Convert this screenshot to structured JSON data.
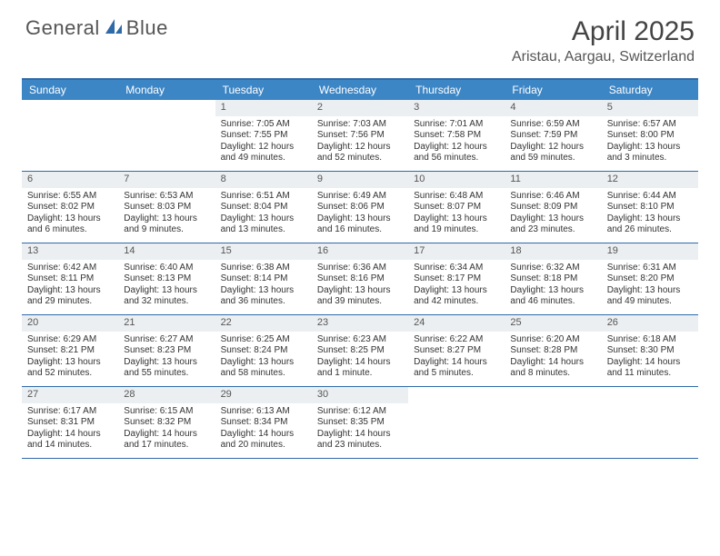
{
  "brand": {
    "name_a": "General",
    "name_b": "Blue"
  },
  "title": "April 2025",
  "location": "Aristau, Aargau, Switzerland",
  "colors": {
    "header_bg": "#3d86c6",
    "border": "#2f6aa8",
    "daynum_bg": "#eceff1",
    "text": "#333333"
  },
  "day_headers": [
    "Sunday",
    "Monday",
    "Tuesday",
    "Wednesday",
    "Thursday",
    "Friday",
    "Saturday"
  ],
  "weeks": [
    [
      {
        "n": "",
        "sr": "",
        "ss": "",
        "dl": ""
      },
      {
        "n": "",
        "sr": "",
        "ss": "",
        "dl": ""
      },
      {
        "n": "1",
        "sr": "Sunrise: 7:05 AM",
        "ss": "Sunset: 7:55 PM",
        "dl": "Daylight: 12 hours and 49 minutes."
      },
      {
        "n": "2",
        "sr": "Sunrise: 7:03 AM",
        "ss": "Sunset: 7:56 PM",
        "dl": "Daylight: 12 hours and 52 minutes."
      },
      {
        "n": "3",
        "sr": "Sunrise: 7:01 AM",
        "ss": "Sunset: 7:58 PM",
        "dl": "Daylight: 12 hours and 56 minutes."
      },
      {
        "n": "4",
        "sr": "Sunrise: 6:59 AM",
        "ss": "Sunset: 7:59 PM",
        "dl": "Daylight: 12 hours and 59 minutes."
      },
      {
        "n": "5",
        "sr": "Sunrise: 6:57 AM",
        "ss": "Sunset: 8:00 PM",
        "dl": "Daylight: 13 hours and 3 minutes."
      }
    ],
    [
      {
        "n": "6",
        "sr": "Sunrise: 6:55 AM",
        "ss": "Sunset: 8:02 PM",
        "dl": "Daylight: 13 hours and 6 minutes."
      },
      {
        "n": "7",
        "sr": "Sunrise: 6:53 AM",
        "ss": "Sunset: 8:03 PM",
        "dl": "Daylight: 13 hours and 9 minutes."
      },
      {
        "n": "8",
        "sr": "Sunrise: 6:51 AM",
        "ss": "Sunset: 8:04 PM",
        "dl": "Daylight: 13 hours and 13 minutes."
      },
      {
        "n": "9",
        "sr": "Sunrise: 6:49 AM",
        "ss": "Sunset: 8:06 PM",
        "dl": "Daylight: 13 hours and 16 minutes."
      },
      {
        "n": "10",
        "sr": "Sunrise: 6:48 AM",
        "ss": "Sunset: 8:07 PM",
        "dl": "Daylight: 13 hours and 19 minutes."
      },
      {
        "n": "11",
        "sr": "Sunrise: 6:46 AM",
        "ss": "Sunset: 8:09 PM",
        "dl": "Daylight: 13 hours and 23 minutes."
      },
      {
        "n": "12",
        "sr": "Sunrise: 6:44 AM",
        "ss": "Sunset: 8:10 PM",
        "dl": "Daylight: 13 hours and 26 minutes."
      }
    ],
    [
      {
        "n": "13",
        "sr": "Sunrise: 6:42 AM",
        "ss": "Sunset: 8:11 PM",
        "dl": "Daylight: 13 hours and 29 minutes."
      },
      {
        "n": "14",
        "sr": "Sunrise: 6:40 AM",
        "ss": "Sunset: 8:13 PM",
        "dl": "Daylight: 13 hours and 32 minutes."
      },
      {
        "n": "15",
        "sr": "Sunrise: 6:38 AM",
        "ss": "Sunset: 8:14 PM",
        "dl": "Daylight: 13 hours and 36 minutes."
      },
      {
        "n": "16",
        "sr": "Sunrise: 6:36 AM",
        "ss": "Sunset: 8:16 PM",
        "dl": "Daylight: 13 hours and 39 minutes."
      },
      {
        "n": "17",
        "sr": "Sunrise: 6:34 AM",
        "ss": "Sunset: 8:17 PM",
        "dl": "Daylight: 13 hours and 42 minutes."
      },
      {
        "n": "18",
        "sr": "Sunrise: 6:32 AM",
        "ss": "Sunset: 8:18 PM",
        "dl": "Daylight: 13 hours and 46 minutes."
      },
      {
        "n": "19",
        "sr": "Sunrise: 6:31 AM",
        "ss": "Sunset: 8:20 PM",
        "dl": "Daylight: 13 hours and 49 minutes."
      }
    ],
    [
      {
        "n": "20",
        "sr": "Sunrise: 6:29 AM",
        "ss": "Sunset: 8:21 PM",
        "dl": "Daylight: 13 hours and 52 minutes."
      },
      {
        "n": "21",
        "sr": "Sunrise: 6:27 AM",
        "ss": "Sunset: 8:23 PM",
        "dl": "Daylight: 13 hours and 55 minutes."
      },
      {
        "n": "22",
        "sr": "Sunrise: 6:25 AM",
        "ss": "Sunset: 8:24 PM",
        "dl": "Daylight: 13 hours and 58 minutes."
      },
      {
        "n": "23",
        "sr": "Sunrise: 6:23 AM",
        "ss": "Sunset: 8:25 PM",
        "dl": "Daylight: 14 hours and 1 minute."
      },
      {
        "n": "24",
        "sr": "Sunrise: 6:22 AM",
        "ss": "Sunset: 8:27 PM",
        "dl": "Daylight: 14 hours and 5 minutes."
      },
      {
        "n": "25",
        "sr": "Sunrise: 6:20 AM",
        "ss": "Sunset: 8:28 PM",
        "dl": "Daylight: 14 hours and 8 minutes."
      },
      {
        "n": "26",
        "sr": "Sunrise: 6:18 AM",
        "ss": "Sunset: 8:30 PM",
        "dl": "Daylight: 14 hours and 11 minutes."
      }
    ],
    [
      {
        "n": "27",
        "sr": "Sunrise: 6:17 AM",
        "ss": "Sunset: 8:31 PM",
        "dl": "Daylight: 14 hours and 14 minutes."
      },
      {
        "n": "28",
        "sr": "Sunrise: 6:15 AM",
        "ss": "Sunset: 8:32 PM",
        "dl": "Daylight: 14 hours and 17 minutes."
      },
      {
        "n": "29",
        "sr": "Sunrise: 6:13 AM",
        "ss": "Sunset: 8:34 PM",
        "dl": "Daylight: 14 hours and 20 minutes."
      },
      {
        "n": "30",
        "sr": "Sunrise: 6:12 AM",
        "ss": "Sunset: 8:35 PM",
        "dl": "Daylight: 14 hours and 23 minutes."
      },
      {
        "n": "",
        "sr": "",
        "ss": "",
        "dl": ""
      },
      {
        "n": "",
        "sr": "",
        "ss": "",
        "dl": ""
      },
      {
        "n": "",
        "sr": "",
        "ss": "",
        "dl": ""
      }
    ]
  ]
}
